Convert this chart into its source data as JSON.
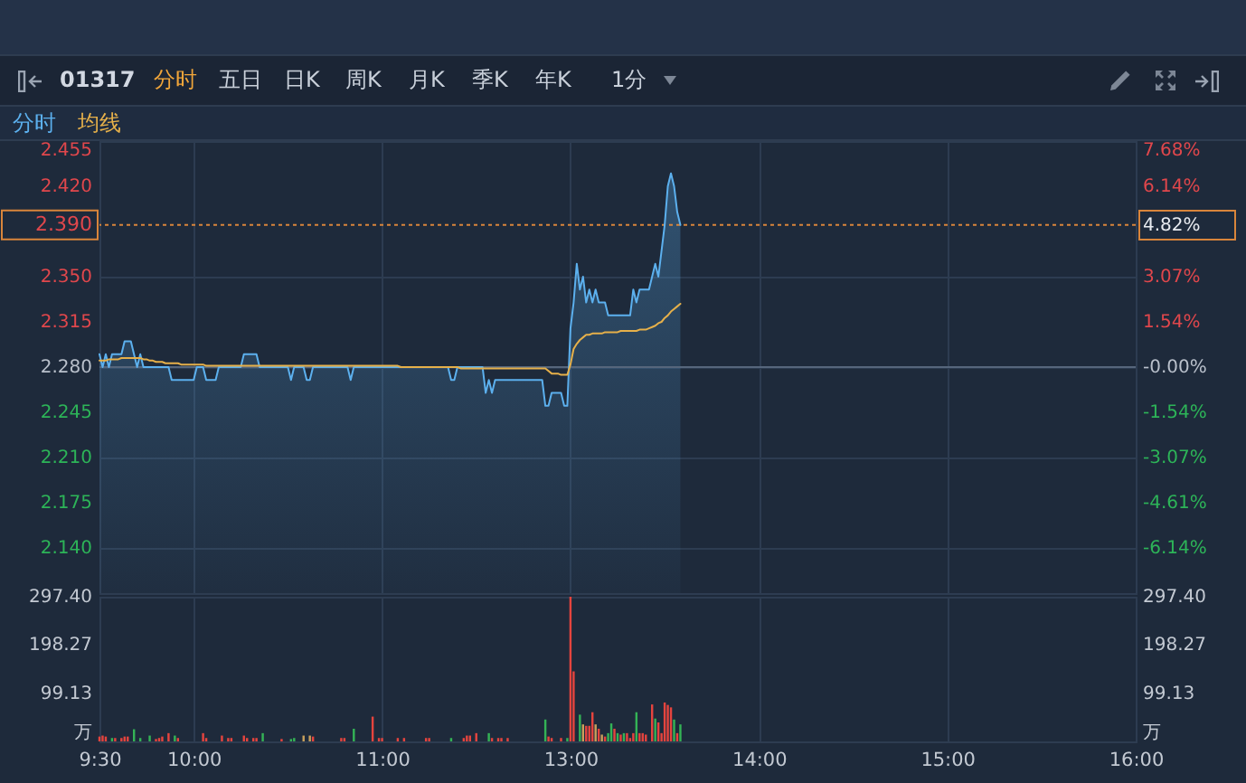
{
  "chart_data": [
    {
      "type": "line",
      "title": "01317",
      "annotations": [
        "分时",
        "五日",
        "日K",
        "周K",
        "月K",
        "季K",
        "年K",
        "1分"
      ],
      "categories": [
        "9:30",
        null,
        null,
        null,
        null,
        null,
        null,
        null,
        null,
        null,
        null,
        null,
        null,
        null,
        null,
        null,
        null,
        null,
        null,
        null,
        null,
        null,
        null,
        null,
        null,
        null,
        null,
        null,
        null,
        null,
        "10:00",
        null,
        null,
        null,
        null,
        null,
        null,
        null,
        null,
        null,
        null,
        null,
        null,
        null,
        null,
        null,
        null,
        null,
        null,
        null,
        null,
        null,
        null,
        null,
        null,
        null,
        null,
        null,
        null,
        null,
        null,
        null,
        null,
        null,
        null,
        null,
        null,
        null,
        null,
        null,
        null,
        null,
        null,
        null,
        null,
        null,
        null,
        null,
        null,
        null,
        null,
        null,
        null,
        null,
        null,
        null,
        null,
        null,
        null,
        null,
        "11:00",
        null,
        null,
        null,
        null,
        null,
        null,
        null,
        null,
        null,
        null,
        null,
        null,
        null,
        null,
        null,
        null,
        null,
        null,
        null,
        null,
        null,
        null,
        null,
        null,
        null,
        null,
        null,
        null,
        null,
        null,
        null,
        null,
        null,
        null,
        null,
        null,
        null,
        null,
        null,
        null,
        null,
        null,
        null,
        null,
        null,
        null,
        null,
        null,
        null,
        null,
        null,
        null,
        null,
        null,
        null,
        null,
        null,
        null,
        null,
        "13:00",
        null,
        null,
        null,
        null,
        null,
        null,
        null,
        null,
        null,
        null,
        null,
        null,
        null,
        null,
        null,
        null,
        null,
        null,
        null,
        null,
        null,
        null,
        null,
        null,
        null,
        null,
        null,
        null,
        null,
        null,
        null,
        null,
        null,
        null,
        null,
        null,
        null,
        null,
        null,
        null,
        null,
        null,
        null,
        null,
        null,
        null,
        null,
        null,
        null,
        null,
        null,
        null,
        null,
        null,
        null,
        null,
        null,
        null,
        null,
        "14:00",
        null,
        null,
        null,
        null,
        null,
        null,
        null,
        null,
        null,
        null,
        null,
        null,
        null,
        null,
        null,
        null,
        null,
        null,
        null,
        null,
        null,
        null,
        null,
        null,
        null,
        null,
        null,
        null,
        null,
        null,
        null,
        null,
        null,
        null,
        null,
        null,
        null,
        null,
        null,
        null,
        null,
        null,
        null,
        null,
        null,
        null,
        null,
        null,
        null,
        null,
        null,
        null,
        null,
        null,
        null,
        null,
        null,
        null,
        null,
        "15:00",
        null,
        null,
        null,
        null,
        null,
        null,
        null,
        null,
        null,
        null,
        null,
        null,
        null,
        null,
        null,
        null,
        null,
        null,
        null,
        null,
        null,
        null,
        null,
        null,
        null,
        null,
        null,
        null,
        null,
        null,
        null,
        null,
        null,
        null,
        null,
        null,
        null,
        null,
        null,
        null,
        null,
        null,
        null,
        null,
        null,
        null,
        null,
        null,
        null,
        null,
        null,
        null,
        null,
        null,
        null,
        null,
        null,
        null,
        null,
        "16:00"
      ],
      "series": [
        {
          "name": "分时",
          "type": "area",
          "color": "#5cb0ee",
          "values": [
            2.29,
            2.28,
            2.29,
            2.28,
            2.29,
            2.29,
            2.29,
            2.29,
            2.3,
            2.3,
            2.3,
            2.29,
            2.28,
            2.29,
            2.28,
            2.28,
            2.28,
            2.28,
            2.28,
            2.28,
            2.28,
            2.28,
            2.28,
            2.27,
            2.27,
            2.27,
            2.27,
            2.27,
            2.27,
            2.27,
            2.27,
            2.28,
            2.28,
            2.28,
            2.27,
            2.27,
            2.27,
            2.27,
            2.28,
            2.28,
            2.28,
            2.28,
            2.28,
            2.28,
            2.28,
            2.28,
            2.29,
            2.29,
            2.29,
            2.29,
            2.29,
            2.28,
            2.28,
            2.28,
            2.28,
            2.28,
            2.28,
            2.28,
            2.28,
            2.28,
            2.28,
            2.27,
            2.28,
            2.28,
            2.28,
            2.28,
            2.27,
            2.27,
            2.28,
            2.28,
            2.28,
            2.28,
            2.28,
            2.28,
            2.28,
            2.28,
            2.28,
            2.28,
            2.28,
            2.28,
            2.27,
            2.28,
            2.28,
            2.28,
            2.28,
            2.28,
            2.28,
            2.28,
            2.28,
            2.28,
            2.28,
            2.28,
            2.28,
            2.28,
            2.28,
            2.28,
            2.28,
            2.28,
            2.28,
            2.28,
            2.28,
            2.28,
            2.28,
            2.28,
            2.28,
            2.28,
            2.28,
            2.28,
            2.28,
            2.28,
            2.28,
            2.28,
            2.27,
            2.27,
            2.28,
            2.28,
            2.28,
            2.28,
            2.28,
            2.28,
            2.28,
            2.28,
            2.28,
            2.26,
            2.27,
            2.26,
            2.27,
            2.27,
            2.27,
            2.27,
            2.27,
            2.27,
            2.27,
            2.27,
            2.27,
            2.27,
            2.27,
            2.27,
            2.27,
            2.27,
            2.27,
            2.27,
            2.25,
            2.25,
            2.26,
            2.26,
            2.26,
            2.26,
            2.25,
            2.25,
            2.31,
            2.33,
            2.36,
            2.34,
            2.35,
            2.33,
            2.34,
            2.33,
            2.34,
            2.33,
            2.33,
            2.33,
            2.32,
            2.32,
            2.32,
            2.32,
            2.32,
            2.32,
            2.32,
            2.32,
            2.34,
            2.33,
            2.34,
            2.34,
            2.34,
            2.34,
            2.35,
            2.36,
            2.35,
            2.37,
            2.39,
            2.42,
            2.43,
            2.42,
            2.4,
            2.39,
            null,
            null,
            null,
            null,
            null,
            null,
            null,
            null,
            null,
            null,
            null,
            null,
            null,
            null,
            null,
            null,
            null,
            null,
            null,
            null,
            null,
            null,
            null,
            null,
            null,
            null,
            null,
            null,
            null,
            null,
            null,
            null,
            null,
            null,
            null,
            null,
            null,
            null,
            null,
            null,
            null,
            null,
            null,
            null,
            null,
            null,
            null,
            null,
            null,
            null,
            null,
            null,
            null,
            null,
            null,
            null,
            null,
            null,
            null,
            null,
            null,
            null,
            null,
            null,
            null,
            null,
            null,
            null,
            null,
            null,
            null,
            null,
            null,
            null,
            null,
            null,
            null,
            null,
            null,
            null,
            null,
            null,
            null,
            null,
            null,
            null,
            null,
            null,
            null,
            null,
            null,
            null,
            null,
            null,
            null,
            null,
            null,
            null,
            null,
            null,
            null,
            null,
            null,
            null,
            null,
            null,
            null,
            null,
            null,
            null,
            null,
            null,
            null,
            null,
            null,
            null,
            null,
            null,
            null,
            null,
            null,
            null,
            null,
            null,
            null,
            null,
            null,
            null,
            null,
            null,
            null,
            null,
            null,
            null,
            null,
            null,
            null,
            null,
            null,
            null,
            null,
            null,
            null,
            null,
            null
          ]
        },
        {
          "name": "均线",
          "type": "line",
          "color": "#e6b04a",
          "values": [
            2.285,
            2.285,
            2.285,
            2.286,
            2.286,
            2.286,
            2.286,
            2.287,
            2.287,
            2.287,
            2.287,
            2.287,
            2.287,
            2.287,
            2.286,
            2.286,
            2.285,
            2.285,
            2.284,
            2.284,
            2.284,
            2.283,
            2.283,
            2.283,
            2.283,
            2.283,
            2.282,
            2.282,
            2.282,
            2.282,
            2.282,
            2.282,
            2.282,
            2.282,
            2.281,
            2.281,
            2.281,
            2.281,
            2.281,
            2.281,
            2.281,
            2.281,
            2.281,
            2.281,
            2.281,
            2.281,
            2.281,
            2.281,
            2.281,
            2.281,
            2.281,
            2.281,
            2.281,
            2.281,
            2.281,
            2.281,
            2.281,
            2.281,
            2.281,
            2.281,
            2.281,
            2.281,
            2.281,
            2.281,
            2.281,
            2.281,
            2.281,
            2.281,
            2.281,
            2.281,
            2.281,
            2.281,
            2.281,
            2.281,
            2.281,
            2.281,
            2.281,
            2.281,
            2.281,
            2.281,
            2.281,
            2.281,
            2.281,
            2.281,
            2.281,
            2.281,
            2.281,
            2.281,
            2.281,
            2.281,
            2.281,
            2.281,
            2.281,
            2.281,
            2.281,
            2.281,
            2.28,
            2.28,
            2.28,
            2.28,
            2.28,
            2.28,
            2.28,
            2.28,
            2.28,
            2.28,
            2.28,
            2.28,
            2.28,
            2.28,
            2.28,
            2.28,
            2.28,
            2.28,
            2.28,
            2.279,
            2.279,
            2.279,
            2.279,
            2.279,
            2.279,
            2.279,
            2.279,
            2.279,
            2.279,
            2.279,
            2.279,
            2.279,
            2.279,
            2.279,
            2.279,
            2.279,
            2.279,
            2.279,
            2.279,
            2.279,
            2.279,
            2.279,
            2.279,
            2.279,
            2.279,
            2.279,
            2.279,
            2.277,
            2.275,
            2.275,
            2.275,
            2.274,
            2.274,
            2.274,
            2.282,
            2.294,
            2.298,
            2.301,
            2.303,
            2.305,
            2.305,
            2.306,
            2.306,
            2.306,
            2.306,
            2.307,
            2.307,
            2.307,
            2.307,
            2.307,
            2.308,
            2.308,
            2.308,
            2.308,
            2.308,
            2.308,
            2.309,
            2.309,
            2.309,
            2.31,
            2.311,
            2.312,
            2.314,
            2.315,
            2.318,
            2.32,
            2.323,
            2.325,
            2.327,
            2.329,
            null,
            null,
            null,
            null,
            null,
            null,
            null,
            null,
            null,
            null,
            null,
            null,
            null,
            null,
            null,
            null,
            null,
            null,
            null,
            null,
            null,
            null,
            null,
            null,
            null,
            null,
            null,
            null,
            null,
            null,
            null,
            null,
            null,
            null,
            null,
            null,
            null,
            null,
            null,
            null,
            null,
            null,
            null,
            null,
            null,
            null,
            null,
            null,
            null,
            null,
            null,
            null,
            null,
            null,
            null,
            null,
            null,
            null,
            null,
            null,
            null,
            null,
            null,
            null,
            null,
            null,
            null,
            null,
            null,
            null,
            null,
            null,
            null,
            null,
            null,
            null,
            null,
            null,
            null,
            null,
            null,
            null,
            null,
            null,
            null,
            null,
            null,
            null,
            null,
            null,
            null,
            null,
            null,
            null,
            null,
            null,
            null,
            null,
            null,
            null,
            null,
            null,
            null,
            null,
            null,
            null,
            null,
            null,
            null,
            null,
            null,
            null,
            null,
            null,
            null,
            null,
            null,
            null,
            null,
            null,
            null,
            null,
            null,
            null,
            null,
            null,
            null,
            null,
            null,
            null,
            null,
            null,
            null,
            null,
            null,
            null,
            null,
            null,
            null,
            null,
            null,
            null,
            null,
            null,
            null
          ]
        }
      ],
      "ylim": [
        2.105,
        2.455
      ],
      "yticks": [
        2.455,
        {
          "value": 2.42,
          "label": "2.420"
        },
        {
          "value": 2.35,
          "label": "2.350"
        },
        2.315,
        {
          "value": 2.28,
          "label": "2.280"
        },
        2.245,
        {
          "value": 2.21,
          "label": "2.210"
        },
        2.175,
        {
          "value": 2.14,
          "label": "2.140"
        }
      ],
      "y2lim": [
        -7.68,
        7.68
      ],
      "y2ticks": [
        {
          "value": 7.68,
          "label": "7.68%"
        },
        {
          "value": 6.14,
          "label": "6.14%"
        },
        {
          "value": 4.82,
          "label": "4.82%"
        },
        {
          "value": 3.07,
          "label": "3.07%"
        },
        {
          "value": 1.54,
          "label": "1.54%"
        },
        {
          "value": 0,
          "label": "-0.00%"
        },
        {
          "value": -1.54,
          "label": "-1.54%"
        },
        {
          "value": -3.07,
          "label": "-3.07%"
        },
        {
          "value": -4.61,
          "label": "-4.61%"
        },
        {
          "value": -6.14,
          "label": "-6.14%"
        }
      ],
      "ref_lines": [
        {
          "axis": "y",
          "value": 2.28,
          "color": "#56667c",
          "line_style": "solid"
        },
        {
          "axis": "y",
          "value": 2.39,
          "label": "2.390",
          "color": "#d9853b",
          "line_style": "dotted"
        }
      ],
      "grid": true,
      "legend": "top left",
      "tick_labels": "y"
    },
    {
      "type": "bar",
      "categories": [
        "9:30",
        null,
        null,
        null,
        null,
        null,
        null,
        null,
        null,
        null,
        null,
        null,
        null,
        null,
        null,
        null,
        null,
        null,
        null,
        null,
        null,
        null,
        null,
        null,
        null,
        null,
        null,
        null,
        null,
        null,
        "10:00",
        null,
        null,
        null,
        null,
        null,
        null,
        null,
        null,
        null,
        null,
        null,
        null,
        null,
        null,
        null,
        null,
        null,
        null,
        null,
        null,
        null,
        null,
        null,
        null,
        null,
        null,
        null,
        null,
        null,
        null,
        null,
        null,
        null,
        null,
        null,
        null,
        null,
        null,
        null,
        null,
        null,
        null,
        null,
        null,
        null,
        null,
        null,
        null,
        null,
        null,
        null,
        null,
        null,
        null,
        null,
        null,
        null,
        null,
        null,
        "11:00",
        null,
        null,
        null,
        null,
        null,
        null,
        null,
        null,
        null,
        null,
        null,
        null,
        null,
        null,
        null,
        null,
        null,
        null,
        null,
        null,
        null,
        null,
        null,
        null,
        null,
        null,
        null,
        null,
        null,
        null,
        null,
        null,
        null,
        null,
        null,
        null,
        null,
        null,
        null,
        null,
        null,
        null,
        null,
        null,
        null,
        null,
        null,
        null,
        null,
        null,
        null,
        null,
        null,
        null,
        null,
        null,
        null,
        null,
        null,
        "13:00",
        null,
        null,
        null,
        null,
        null,
        null,
        null,
        null,
        null,
        null,
        null,
        null,
        null,
        null,
        null,
        null,
        null,
        null,
        null,
        null,
        null,
        null,
        null,
        null,
        null,
        null,
        null,
        null,
        null,
        null,
        null,
        null,
        null,
        null,
        null,
        null,
        null,
        null,
        null,
        null,
        null,
        null,
        null,
        null,
        null,
        null,
        null,
        null,
        null,
        null,
        null,
        null,
        null,
        null,
        null,
        null,
        null,
        null,
        null,
        "14:00",
        null,
        null,
        null,
        null,
        null,
        null,
        null,
        null,
        null,
        null,
        null,
        null,
        null,
        null,
        null,
        null,
        null,
        null,
        null,
        null,
        null,
        null,
        null,
        null,
        null,
        null,
        null,
        null,
        null,
        null,
        null,
        null,
        null,
        null,
        null,
        null,
        null,
        null,
        null,
        null,
        null,
        null,
        null,
        null,
        null,
        null,
        null,
        null,
        null,
        null,
        null,
        null,
        null,
        null,
        null,
        null,
        null,
        null,
        null,
        "15:00",
        null,
        null,
        null,
        null,
        null,
        null,
        null,
        null,
        null,
        null,
        null,
        null,
        null,
        null,
        null,
        null,
        null,
        null,
        null,
        null,
        null,
        null,
        null,
        null,
        null,
        null,
        null,
        null,
        null,
        null,
        null,
        null,
        null,
        null,
        null,
        null,
        null,
        null,
        null,
        null,
        null,
        null,
        null,
        null,
        null,
        null,
        null,
        null,
        null,
        null,
        null,
        null,
        null,
        null,
        null,
        null,
        null,
        null,
        null,
        "16:00"
      ],
      "values": [
        10,
        12,
        10,
        null,
        7,
        7,
        null,
        7,
        10,
        10,
        null,
        25,
        null,
        7,
        null,
        null,
        12,
        null,
        5,
        7,
        10,
        null,
        17,
        null,
        12,
        7,
        null,
        null,
        null,
        null,
        null,
        null,
        null,
        17,
        7,
        null,
        null,
        null,
        null,
        12,
        null,
        7,
        7,
        null,
        null,
        null,
        12,
        7,
        null,
        7,
        7,
        null,
        17,
        null,
        null,
        null,
        null,
        null,
        5,
        null,
        null,
        5,
        7,
        null,
        null,
        12,
        null,
        12,
        10,
        null,
        null,
        null,
        null,
        null,
        null,
        null,
        null,
        7,
        7,
        null,
        null,
        26,
        null,
        null,
        null,
        null,
        null,
        51,
        null,
        7,
        7,
        null,
        null,
        null,
        null,
        7,
        null,
        7,
        null,
        null,
        null,
        null,
        null,
        null,
        7,
        7,
        null,
        null,
        null,
        null,
        null,
        null,
        7,
        null,
        null,
        null,
        7,
        12,
        12,
        null,
        17,
        null,
        null,
        null,
        17,
        7,
        null,
        7,
        7,
        null,
        7,
        null,
        null,
        null,
        null,
        null,
        null,
        null,
        null,
        null,
        null,
        null,
        45,
        10,
        7,
        null,
        null,
        7,
        null,
        7,
        297.4,
        144,
        null,
        55,
        35,
        32,
        32,
        60,
        35,
        26,
        14,
        10,
        17,
        37,
        26,
        17,
        14,
        17,
        17,
        7,
        17,
        60,
        17,
        17,
        14,
        null,
        76,
        47,
        39,
        17,
        80,
        75,
        70,
        45,
        17,
        35,
        null,
        null,
        null,
        null,
        null,
        null,
        null,
        null,
        null,
        null,
        null,
        null,
        null,
        null,
        null,
        null,
        null,
        null,
        null,
        null,
        null,
        null,
        null,
        null,
        null,
        null,
        null,
        null,
        null,
        null,
        null,
        null,
        null,
        null,
        null,
        null,
        null,
        null,
        null,
        null,
        null,
        null,
        null,
        null,
        null,
        null,
        null,
        null,
        null,
        null,
        null,
        null,
        null,
        null,
        null,
        null,
        null,
        null,
        null,
        null,
        null,
        null,
        null,
        null,
        null,
        null,
        null,
        null,
        null,
        null,
        null,
        null,
        null,
        null,
        null,
        null,
        null,
        null,
        null,
        null,
        null,
        null,
        null,
        null,
        null,
        null,
        null,
        null,
        null,
        null,
        null,
        null,
        null,
        null,
        null,
        null,
        null,
        null,
        null,
        null,
        null,
        null,
        null,
        null,
        null,
        null,
        null,
        null,
        null,
        null,
        null,
        null,
        null,
        null,
        null,
        null,
        null,
        null,
        null,
        null,
        null,
        null,
        null,
        null,
        null,
        null,
        null,
        null,
        null,
        null,
        null,
        null,
        null,
        null,
        null,
        null,
        null,
        null,
        null,
        null,
        null,
        null,
        null,
        null,
        null
      ],
      "colors": [
        "#e5443e",
        "#e5443e",
        "#e5443e",
        null,
        "#34b356",
        "#e5443e",
        null,
        "#e5443e",
        "#e5443e",
        "#e5443e",
        null,
        "#34b356",
        null,
        "#34b356",
        null,
        null,
        "#34b356",
        null,
        "#e5443e",
        "#e5443e",
        "#e5443e",
        null,
        "#e5443e",
        null,
        "#34b356",
        "#e5443e",
        null,
        null,
        null,
        null,
        null,
        null,
        null,
        "#e5443e",
        "#e5443e",
        null,
        null,
        null,
        null,
        "#e5443e",
        null,
        "#e5443e",
        "#e5443e",
        null,
        null,
        null,
        "#e5443e",
        "#e5443e",
        null,
        "#e5443e",
        "#e5443e",
        null,
        "#34b356",
        null,
        null,
        null,
        null,
        null,
        "#e5443e",
        null,
        null,
        "#34b356",
        "#34b356",
        null,
        null,
        "#c9a15c",
        null,
        "#c9a15c",
        "#e5443e",
        null,
        null,
        null,
        null,
        null,
        null,
        null,
        null,
        "#e5443e",
        "#e5443e",
        null,
        null,
        "#34b356",
        null,
        null,
        null,
        null,
        null,
        "#e5443e",
        null,
        "#e5443e",
        "#e5443e",
        null,
        null,
        null,
        null,
        "#e5443e",
        null,
        "#e5443e",
        null,
        null,
        null,
        null,
        null,
        null,
        "#e5443e",
        "#e5443e",
        null,
        null,
        null,
        null,
        null,
        null,
        "#34b356",
        null,
        null,
        null,
        "#e5443e",
        "#e5443e",
        "#e5443e",
        null,
        "#e5443e",
        null,
        null,
        null,
        "#34b356",
        "#e5443e",
        null,
        "#e5443e",
        "#e5443e",
        null,
        "#e5443e",
        null,
        null,
        null,
        null,
        null,
        null,
        null,
        null,
        null,
        null,
        null,
        "#34b356",
        "#e5443e",
        "#e5443e",
        null,
        null,
        "#e5443e",
        null,
        "#34b356",
        "#e5443e",
        "#e5443e",
        null,
        "#34b356",
        "#c9a15c",
        "#e5443e",
        "#e5443e",
        "#e5443e",
        "#c9a15c",
        "#e5443e",
        "#c9a15c",
        "#e5443e",
        "#34b356",
        "#34b356",
        "#e5443e",
        "#34b356",
        "#e5443e",
        "#34b356",
        "#e5443e",
        "#e5443e",
        "#e5443e",
        "#34b356",
        "#e5443e",
        "#e5443e",
        "#e5443e",
        null,
        "#e5443e",
        "#34b356",
        "#e5443e",
        "#e5443e",
        "#e5443e",
        "#e5443e",
        "#e5443e",
        "#34b356",
        "#e5443e",
        "#34b356",
        null,
        null,
        null,
        null,
        null,
        null,
        null,
        null,
        null,
        null,
        null,
        null,
        null,
        null,
        null,
        null,
        null,
        null,
        null,
        null,
        null,
        null,
        null,
        null,
        null,
        null,
        null,
        null,
        null,
        null,
        null,
        null,
        null,
        null,
        null,
        null,
        null,
        null,
        null,
        null,
        null,
        null,
        null,
        null,
        null,
        null,
        null,
        null,
        null,
        null,
        null,
        null,
        null,
        null,
        null,
        null,
        null,
        null,
        null,
        null,
        null,
        null,
        null,
        null,
        null,
        null,
        null,
        null,
        null,
        null,
        null,
        null,
        null,
        null,
        null,
        null,
        null,
        null,
        null,
        null,
        null,
        null,
        null,
        null,
        null,
        null,
        null,
        null,
        null,
        null,
        null,
        null,
        null,
        null,
        null,
        null,
        null,
        null,
        null,
        null,
        null,
        null,
        null,
        null,
        null,
        null,
        null,
        null,
        null,
        null,
        null,
        null,
        null,
        null,
        null,
        null,
        null,
        null,
        null,
        null,
        null,
        null,
        null,
        null,
        null,
        null,
        null,
        null,
        null,
        null,
        null,
        null,
        null,
        null,
        null,
        null,
        null,
        null,
        null,
        null,
        null,
        null,
        null,
        null,
        null
      ],
      "ylim": [
        0,
        297.4
      ],
      "yticks": [
        {
          "value": 0,
          "label": "万"
        },
        99.13,
        198.27,
        {
          "value": 297.4,
          "label": "297.40"
        }
      ],
      "y2lim": [
        0,
        297.4
      ],
      "y2ticks": [
        {
          "value": 0,
          "label": "万"
        },
        99.13,
        198.27,
        {
          "value": 297.4,
          "label": "297.40"
        }
      ],
      "grid": true
    }
  ]
}
